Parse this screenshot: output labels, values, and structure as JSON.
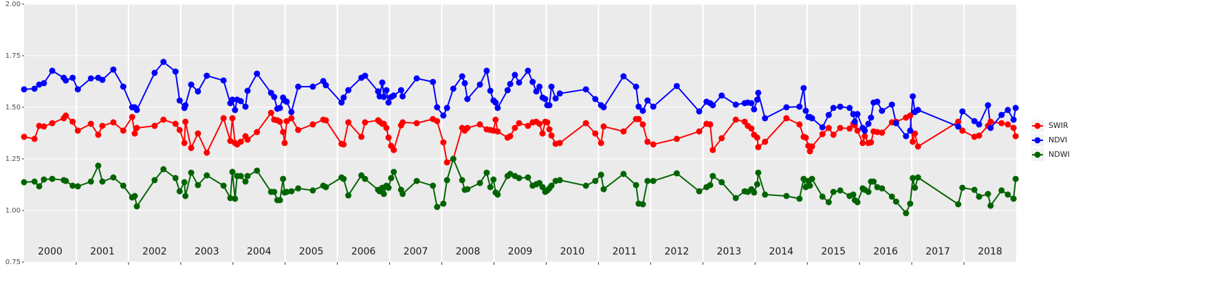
{
  "chart_data": {
    "type": "line",
    "x": [
      2000.0,
      2000.2,
      2000.29,
      2000.38,
      2000.54,
      2000.76,
      2000.8,
      2000.93,
      2001.03,
      2001.28,
      2001.42,
      2001.5,
      2001.71,
      2001.9,
      2002.07,
      2002.12,
      2002.16,
      2002.5,
      2002.67,
      2002.9,
      2002.98,
      2003.07,
      2003.09,
      2003.2,
      2003.33,
      2003.5,
      2003.82,
      2003.95,
      2003.99,
      2004.04,
      2004.08,
      2004.15,
      2004.24,
      2004.28,
      2004.46,
      2004.73,
      2004.79,
      2004.85,
      2004.9,
      2004.96,
      2004.99,
      2005.03,
      2005.12,
      2005.25,
      2005.53,
      2005.73,
      2005.78,
      2006.08,
      2006.12,
      2006.21,
      2006.46,
      2006.53,
      2006.78,
      2006.81,
      2006.86,
      2006.89,
      2006.94,
      2006.98,
      2007.03,
      2007.08,
      2007.22,
      2007.25,
      2007.52,
      2007.83,
      2007.91,
      2008.03,
      2008.1,
      2008.22,
      2008.39,
      2008.44,
      2008.49,
      2008.73,
      2008.86,
      2008.93,
      2008.99,
      2009.03,
      2009.07,
      2009.26,
      2009.31,
      2009.4,
      2009.48,
      2009.65,
      2009.74,
      2009.81,
      2009.87,
      2009.93,
      2009.98,
      2010.02,
      2010.06,
      2010.1,
      2010.18,
      2010.26,
      2010.76,
      2010.94,
      2011.05,
      2011.1,
      2011.48,
      2011.72,
      2011.77,
      2011.85,
      2011.94,
      2012.05,
      2012.5,
      2012.93,
      2013.07,
      2013.14,
      2013.19,
      2013.36,
      2013.63,
      2013.8,
      2013.86,
      2013.93,
      2013.98,
      2014.04,
      2014.06,
      2014.19,
      2014.6,
      2014.85,
      2014.93,
      2014.97,
      2015.02,
      2015.05,
      2015.09,
      2015.29,
      2015.41,
      2015.5,
      2015.63,
      2015.81,
      2015.88,
      2015.91,
      2015.96,
      2016.06,
      2016.1,
      2016.17,
      2016.22,
      2016.27,
      2016.34,
      2016.43,
      2016.62,
      2016.7,
      2016.89,
      2016.97,
      2017.02,
      2017.06,
      2017.12,
      2017.89,
      2017.97,
      2018.2,
      2018.29,
      2018.46,
      2018.51,
      2018.72,
      2018.84,
      2018.95,
      2018.99
    ],
    "series": [
      {
        "name": "SWIR",
        "color": "#ff0000",
        "values": [
          1.357,
          1.347,
          1.41,
          1.407,
          1.423,
          1.447,
          1.46,
          1.43,
          1.387,
          1.42,
          1.367,
          1.41,
          1.427,
          1.387,
          1.453,
          1.373,
          1.4,
          1.41,
          1.44,
          1.42,
          1.39,
          1.327,
          1.43,
          1.303,
          1.373,
          1.28,
          1.447,
          1.337,
          1.447,
          1.327,
          1.32,
          1.333,
          1.36,
          1.343,
          1.38,
          1.473,
          1.44,
          1.437,
          1.43,
          1.38,
          1.327,
          1.433,
          1.447,
          1.39,
          1.417,
          1.44,
          1.437,
          1.323,
          1.32,
          1.427,
          1.357,
          1.427,
          1.437,
          1.43,
          1.42,
          1.42,
          1.4,
          1.353,
          1.313,
          1.293,
          1.413,
          1.427,
          1.423,
          1.443,
          1.433,
          1.33,
          1.233,
          1.25,
          1.4,
          1.387,
          1.4,
          1.417,
          1.393,
          1.39,
          1.387,
          1.44,
          1.383,
          1.353,
          1.36,
          1.4,
          1.423,
          1.41,
          1.427,
          1.43,
          1.42,
          1.373,
          1.43,
          1.427,
          1.393,
          1.363,
          1.323,
          1.327,
          1.423,
          1.373,
          1.327,
          1.407,
          1.383,
          1.443,
          1.443,
          1.417,
          1.333,
          1.32,
          1.347,
          1.383,
          1.42,
          1.417,
          1.293,
          1.35,
          1.44,
          1.43,
          1.41,
          1.397,
          1.367,
          1.353,
          1.307,
          1.333,
          1.447,
          1.417,
          1.357,
          1.353,
          1.313,
          1.287,
          1.31,
          1.37,
          1.4,
          1.367,
          1.4,
          1.397,
          1.42,
          1.413,
          1.387,
          1.327,
          1.36,
          1.327,
          1.33,
          1.383,
          1.38,
          1.377,
          1.427,
          1.43,
          1.45,
          1.46,
          1.333,
          1.373,
          1.31,
          1.43,
          1.387,
          1.357,
          1.363,
          1.41,
          1.43,
          1.423,
          1.417,
          1.4,
          1.36
        ]
      },
      {
        "name": "NDVI",
        "color": "#0000ff",
        "values": [
          1.587,
          1.59,
          1.61,
          1.617,
          1.677,
          1.643,
          1.63,
          1.643,
          1.587,
          1.64,
          1.643,
          1.633,
          1.683,
          1.6,
          1.5,
          1.5,
          1.487,
          1.667,
          1.72,
          1.673,
          1.533,
          1.497,
          1.51,
          1.61,
          1.577,
          1.653,
          1.63,
          1.52,
          1.537,
          1.487,
          1.537,
          1.53,
          1.503,
          1.58,
          1.663,
          1.57,
          1.55,
          1.493,
          1.497,
          1.547,
          1.533,
          1.527,
          1.477,
          1.6,
          1.6,
          1.627,
          1.607,
          1.523,
          1.547,
          1.583,
          1.643,
          1.653,
          1.577,
          1.553,
          1.62,
          1.55,
          1.583,
          1.523,
          1.55,
          1.557,
          1.583,
          1.553,
          1.64,
          1.623,
          1.5,
          1.46,
          1.497,
          1.59,
          1.65,
          1.617,
          1.54,
          1.61,
          1.677,
          1.58,
          1.533,
          1.523,
          1.497,
          1.583,
          1.613,
          1.657,
          1.62,
          1.677,
          1.623,
          1.577,
          1.6,
          1.547,
          1.54,
          1.51,
          1.51,
          1.6,
          1.543,
          1.567,
          1.587,
          1.54,
          1.51,
          1.5,
          1.65,
          1.6,
          1.503,
          1.483,
          1.533,
          1.503,
          1.603,
          1.48,
          1.527,
          1.52,
          1.51,
          1.557,
          1.513,
          1.52,
          1.523,
          1.52,
          1.49,
          1.537,
          1.57,
          1.447,
          1.5,
          1.503,
          1.593,
          1.483,
          1.453,
          1.453,
          1.447,
          1.403,
          1.463,
          1.497,
          1.503,
          1.497,
          1.467,
          1.43,
          1.467,
          1.4,
          1.387,
          1.42,
          1.45,
          1.523,
          1.527,
          1.483,
          1.513,
          1.423,
          1.36,
          1.387,
          1.553,
          1.477,
          1.487,
          1.407,
          1.48,
          1.433,
          1.417,
          1.51,
          1.4,
          1.463,
          1.487,
          1.44,
          1.497
        ]
      },
      {
        "name": "NDWI",
        "color": "#006400",
        "values": [
          1.137,
          1.14,
          1.117,
          1.15,
          1.153,
          1.147,
          1.143,
          1.12,
          1.117,
          1.14,
          1.217,
          1.14,
          1.16,
          1.12,
          1.063,
          1.07,
          1.02,
          1.147,
          1.2,
          1.157,
          1.093,
          1.137,
          1.07,
          1.183,
          1.123,
          1.17,
          1.12,
          1.06,
          1.187,
          1.057,
          1.167,
          1.167,
          1.14,
          1.167,
          1.193,
          1.09,
          1.09,
          1.05,
          1.05,
          1.153,
          1.087,
          1.09,
          1.093,
          1.107,
          1.097,
          1.12,
          1.113,
          1.16,
          1.153,
          1.073,
          1.17,
          1.153,
          1.1,
          1.093,
          1.11,
          1.08,
          1.12,
          1.11,
          1.157,
          1.187,
          1.1,
          1.08,
          1.143,
          1.12,
          1.017,
          1.033,
          1.147,
          1.25,
          1.147,
          1.1,
          1.103,
          1.133,
          1.183,
          1.113,
          1.15,
          1.087,
          1.077,
          1.167,
          1.177,
          1.167,
          1.157,
          1.16,
          1.12,
          1.127,
          1.133,
          1.113,
          1.09,
          1.097,
          1.107,
          1.12,
          1.143,
          1.147,
          1.12,
          1.143,
          1.173,
          1.103,
          1.177,
          1.123,
          1.033,
          1.03,
          1.143,
          1.143,
          1.18,
          1.093,
          1.113,
          1.123,
          1.167,
          1.137,
          1.06,
          1.093,
          1.09,
          1.103,
          1.087,
          1.127,
          1.183,
          1.077,
          1.07,
          1.057,
          1.153,
          1.113,
          1.143,
          1.12,
          1.153,
          1.067,
          1.04,
          1.09,
          1.097,
          1.07,
          1.077,
          1.05,
          1.04,
          1.107,
          1.1,
          1.09,
          1.14,
          1.14,
          1.113,
          1.107,
          1.067,
          1.043,
          0.987,
          1.033,
          1.157,
          1.11,
          1.16,
          1.03,
          1.11,
          1.1,
          1.067,
          1.08,
          1.023,
          1.097,
          1.077,
          1.057,
          1.153
        ]
      }
    ],
    "xlim": [
      2000,
      2019
    ],
    "xticks": [
      {
        "value": 2000.5,
        "label": "2000"
      },
      {
        "value": 2001.5,
        "label": "2001"
      },
      {
        "value": 2002.5,
        "label": "2002"
      },
      {
        "value": 2003.5,
        "label": "2003"
      },
      {
        "value": 2004.5,
        "label": "2004"
      },
      {
        "value": 2005.5,
        "label": "2005"
      },
      {
        "value": 2006.5,
        "label": "2006"
      },
      {
        "value": 2007.5,
        "label": "2007"
      },
      {
        "value": 2008.5,
        "label": "2008"
      },
      {
        "value": 2009.5,
        "label": "2009"
      },
      {
        "value": 2010.5,
        "label": "2010"
      },
      {
        "value": 2011.5,
        "label": "2011"
      },
      {
        "value": 2012.5,
        "label": "2012"
      },
      {
        "value": 2013.5,
        "label": "2013"
      },
      {
        "value": 2014.5,
        "label": "2014"
      },
      {
        "value": 2015.5,
        "label": "2015"
      },
      {
        "value": 2016.5,
        "label": "2016"
      },
      {
        "value": 2017.5,
        "label": "2017"
      },
      {
        "value": 2018.5,
        "label": "2018"
      }
    ],
    "xgrid": [
      2001,
      2002,
      2003,
      2004,
      2005,
      2006,
      2007,
      2008,
      2009,
      2010,
      2011,
      2012,
      2013,
      2014,
      2015,
      2016,
      2017,
      2018
    ],
    "ylim": [
      0.75,
      2.0
    ],
    "yticks": [
      {
        "value": 0.75,
        "label": "0.75"
      },
      {
        "value": 1.0,
        "label": "1.00"
      },
      {
        "value": 1.25,
        "label": "1.25"
      },
      {
        "value": 1.5,
        "label": "1.50"
      },
      {
        "value": 1.75,
        "label": "1.75"
      },
      {
        "value": 2.0,
        "label": "2.00"
      }
    ],
    "grid": true,
    "legend": "right"
  }
}
